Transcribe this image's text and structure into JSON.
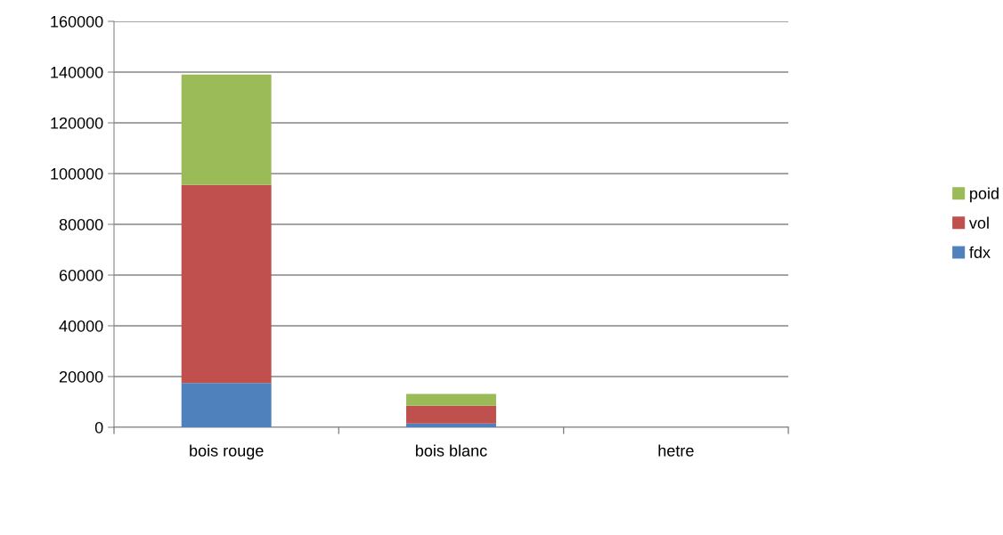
{
  "chart_data": {
    "type": "bar",
    "stacked": true,
    "categories": [
      "bois rouge",
      "bois blanc",
      "hetre"
    ],
    "series": [
      {
        "name": "fdx",
        "color": "#4f81bd",
        "values": [
          17500,
          1500,
          0
        ]
      },
      {
        "name": "vol",
        "color": "#c0504d",
        "values": [
          78000,
          7000,
          0
        ]
      },
      {
        "name": "poid",
        "color": "#9bbb59",
        "values": [
          43500,
          4700,
          0
        ]
      }
    ],
    "ylim": [
      0,
      160000
    ],
    "yticks": [
      0,
      20000,
      40000,
      60000,
      80000,
      100000,
      120000,
      140000,
      160000
    ],
    "grid": "y",
    "legend": "right"
  }
}
